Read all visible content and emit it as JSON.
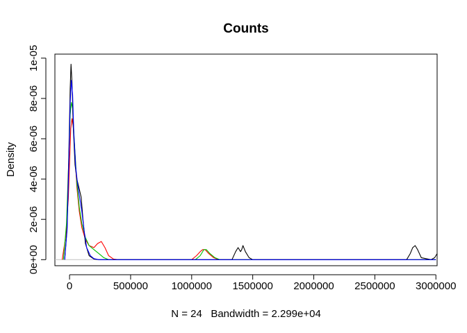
{
  "chart_data": {
    "type": "line",
    "title": "Counts",
    "xlabel": "N = 24   Bandwidth = 2.299e+04",
    "ylabel": "Density",
    "xlim": [
      -120000,
      3010000
    ],
    "ylim": [
      -3e-07,
      1.02e-05
    ],
    "x_ticks": [
      {
        "value": 0,
        "label": "0"
      },
      {
        "value": 500000,
        "label": "500000"
      },
      {
        "value": 1000000,
        "label": "1000000"
      },
      {
        "value": 1500000,
        "label": "1500000"
      },
      {
        "value": 2000000,
        "label": "2000000"
      },
      {
        "value": 2500000,
        "label": "2500000"
      },
      {
        "value": 3000000,
        "label": "3000000"
      }
    ],
    "y_ticks": [
      {
        "value": 0,
        "label": "0e+00"
      },
      {
        "value": 2e-06,
        "label": "2e-06"
      },
      {
        "value": 4e-06,
        "label": "4e-06"
      },
      {
        "value": 6e-06,
        "label": "6e-06"
      },
      {
        "value": 8e-06,
        "label": "8e-06"
      },
      {
        "value": 1e-05,
        "label": "1e-05"
      }
    ],
    "grid": false,
    "baseline": {
      "y": 0,
      "color": "#c0c0c0"
    },
    "series": [
      {
        "color": "#ff0000",
        "x": [
          -60000,
          -30000,
          -10000,
          0,
          10000,
          20000,
          30000,
          45000,
          60000,
          80000,
          100000,
          130000,
          160000,
          200000,
          230000,
          260000,
          290000,
          320000,
          360000,
          400000,
          1000000,
          1040000,
          1070000,
          1090000,
          1110000,
          1140000,
          1180000,
          1220000,
          3000000
        ],
        "y": [
          0,
          1.2e-06,
          3e-06,
          4.8e-06,
          6.5e-06,
          7e-06,
          6.6e-06,
          5.2e-06,
          3.6e-06,
          2.4e-06,
          1.6e-06,
          1e-06,
          7e-07,
          6e-07,
          8e-07,
          9e-07,
          6e-07,
          2e-07,
          3e-08,
          0,
          0,
          2e-07,
          4e-07,
          5e-07,
          5e-07,
          3e-07,
          1e-07,
          0,
          0
        ]
      },
      {
        "color": "#00c000",
        "x": [
          -50000,
          -25000,
          -5000,
          5000,
          15000,
          25000,
          40000,
          60000,
          80000,
          100000,
          130000,
          160000,
          200000,
          240000,
          280000,
          320000,
          1030000,
          1070000,
          1100000,
          1120000,
          1150000,
          1190000,
          1230000,
          3000000
        ],
        "y": [
          0,
          1.8e-06,
          5.2e-06,
          7.2e-06,
          7.8e-06,
          7.5e-06,
          5.8e-06,
          3.8e-06,
          2.6e-06,
          1.8e-06,
          1.1e-06,
          7e-07,
          5e-07,
          3e-07,
          1e-07,
          0,
          0,
          2e-07,
          5e-07,
          5e-07,
          3e-07,
          1e-07,
          0,
          0
        ]
      },
      {
        "color": "#000000",
        "x": [
          -40000,
          -20000,
          -5000,
          5000,
          12000,
          20000,
          30000,
          45000,
          60000,
          80000,
          95000,
          110000,
          130000,
          160000,
          200000,
          240000,
          280000,
          1330000,
          1360000,
          1380000,
          1400000,
          1410000,
          1420000,
          1440000,
          1470000,
          1500000,
          2760000,
          2790000,
          2810000,
          2830000,
          2850000,
          2880000,
          2960000,
          2990000,
          3010000
        ],
        "y": [
          0,
          1.6e-06,
          5.5e-06,
          8.5e-06,
          9.7e-06,
          8.8e-06,
          6.6e-06,
          4.7e-06,
          4e-06,
          3.5e-06,
          3.1e-06,
          2e-06,
          8e-07,
          2e-07,
          3e-08,
          0,
          0,
          0,
          4e-07,
          6e-07,
          4e-07,
          5e-07,
          7e-07,
          4e-07,
          1e-07,
          0,
          0,
          3e-07,
          6e-07,
          7e-07,
          5e-07,
          1e-07,
          0,
          1e-07,
          3e-07
        ]
      },
      {
        "color": "#0000ff",
        "x": [
          -40000,
          -20000,
          -5000,
          5000,
          15000,
          25000,
          35000,
          50000,
          65000,
          80000,
          100000,
          120000,
          140000,
          170000,
          200000,
          240000,
          280000,
          3000000
        ],
        "y": [
          0,
          1.5e-06,
          5e-06,
          7.8e-06,
          8.9e-06,
          8.2e-06,
          6.3e-06,
          4.6e-06,
          3.8e-06,
          3.2e-06,
          2.4e-06,
          1.4e-06,
          6e-07,
          2e-07,
          5e-08,
          0,
          0,
          0
        ]
      }
    ]
  }
}
